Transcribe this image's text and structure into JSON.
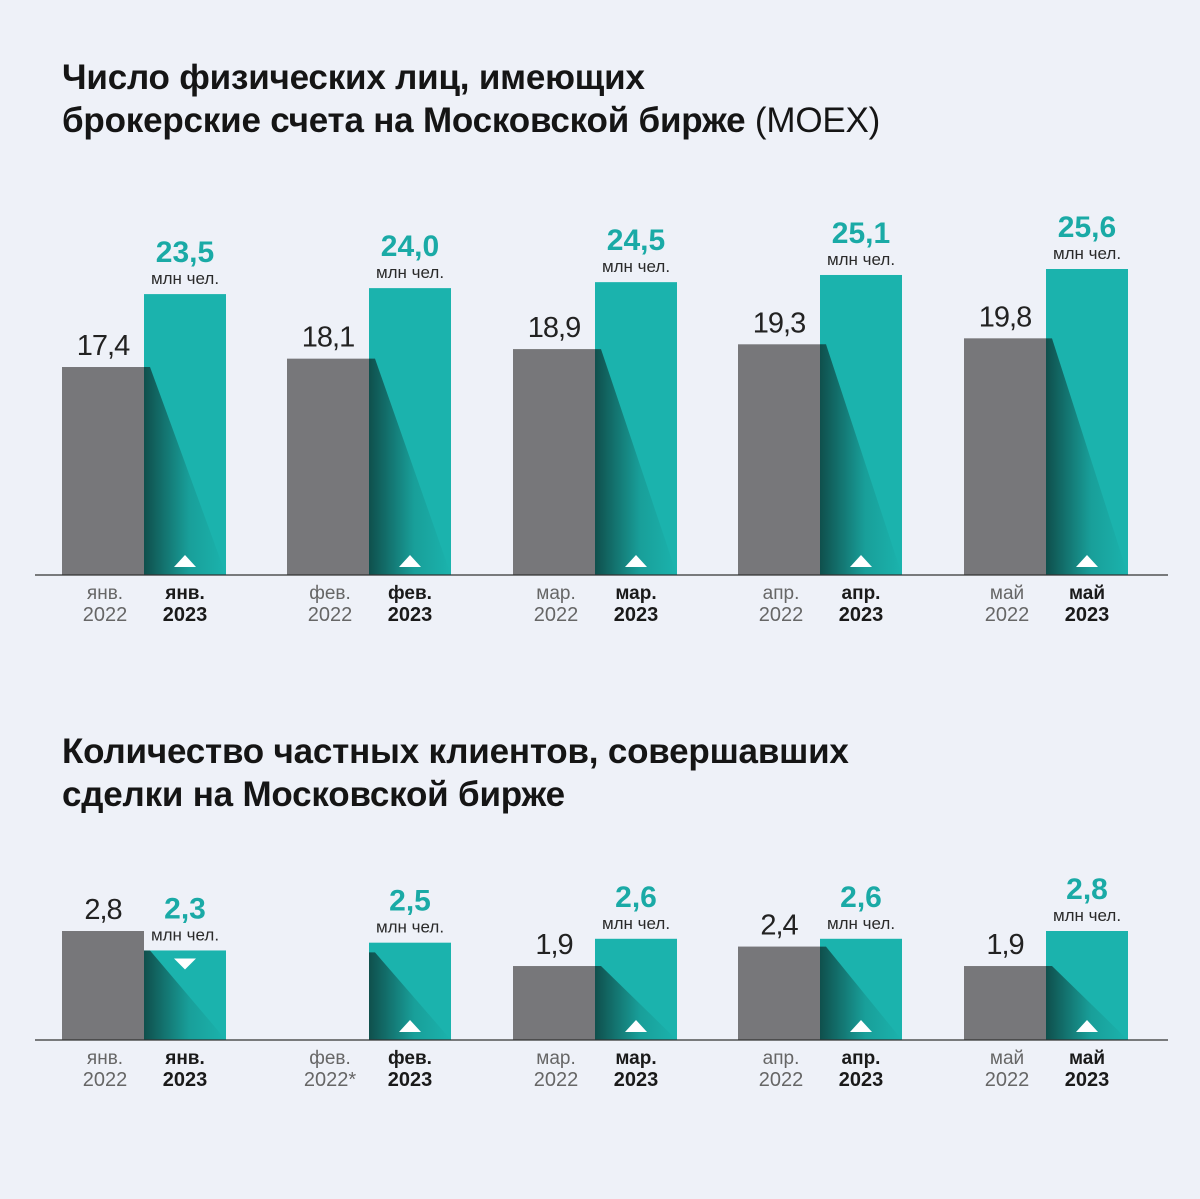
{
  "colors": {
    "gray": "#77777a",
    "teal": "#1bb3ad",
    "teal_text": "#1aaaa6",
    "background": "#eef1f8",
    "axis": "#333333"
  },
  "chart_data": [
    {
      "type": "bar",
      "title": "Число физических лиц, имеющих брокерские счета на Московской бирже",
      "title_line1": "Число физических лиц, имеющих",
      "title_line2_bold": "брокерские счета на Московской бирже",
      "title_line2_light": " (MOEX)",
      "unit": "млн чел.",
      "ylim": [
        0,
        25.6
      ],
      "categories": [
        {
          "month": "янв.",
          "month_2023": "янв."
        },
        {
          "month": "фев.",
          "month_2023": "фев."
        },
        {
          "month": "мар.",
          "month_2023": "мар."
        },
        {
          "month": "апр.",
          "month_2023": "апр."
        },
        {
          "month": "май",
          "month_2023": "май"
        }
      ],
      "series": [
        {
          "name": "2022",
          "values": [
            17.4,
            18.1,
            18.9,
            19.3,
            19.8
          ],
          "labels": [
            "17,4",
            "18,1",
            "18,9",
            "19,3",
            "19,8"
          ]
        },
        {
          "name": "2023",
          "values": [
            23.5,
            24.0,
            24.5,
            25.1,
            25.6
          ],
          "labels": [
            "23,5",
            "24,0",
            "24,5",
            "25,1",
            "25,6"
          ],
          "trend": [
            "up",
            "up",
            "up",
            "up",
            "up"
          ]
        }
      ]
    },
    {
      "type": "bar",
      "title": "Количество частных клиентов, совершавших сделки на Московской бирже",
      "title_line1": "Количество частных клиентов, совершавших",
      "title_line2_bold": "сделки на Московской бирже",
      "title_line2_light": "",
      "unit": "млн чел.",
      "ylim": [
        0,
        2.8
      ],
      "categories": [
        {
          "month": "янв.",
          "month_2023": "янв."
        },
        {
          "month": "фев.",
          "month_2023": "фев."
        },
        {
          "month": "мар.",
          "month_2023": "мар."
        },
        {
          "month": "апр.",
          "month_2023": "апр."
        },
        {
          "month": "май",
          "month_2023": "май"
        }
      ],
      "series": [
        {
          "name": "2022",
          "values": [
            2.8,
            null,
            1.9,
            2.4,
            1.9
          ],
          "labels": [
            "2,8",
            "",
            "1,9",
            "2,4",
            "1,9"
          ],
          "year_labels": [
            "2022",
            "2022*",
            "2022",
            "2022",
            "2022"
          ]
        },
        {
          "name": "2023",
          "values": [
            2.3,
            2.5,
            2.6,
            2.6,
            2.8
          ],
          "labels": [
            "2,3",
            "2,5",
            "2,6",
            "2,6",
            "2,8"
          ],
          "trend": [
            "down",
            "up",
            "up",
            "up",
            "up"
          ]
        }
      ]
    }
  ]
}
